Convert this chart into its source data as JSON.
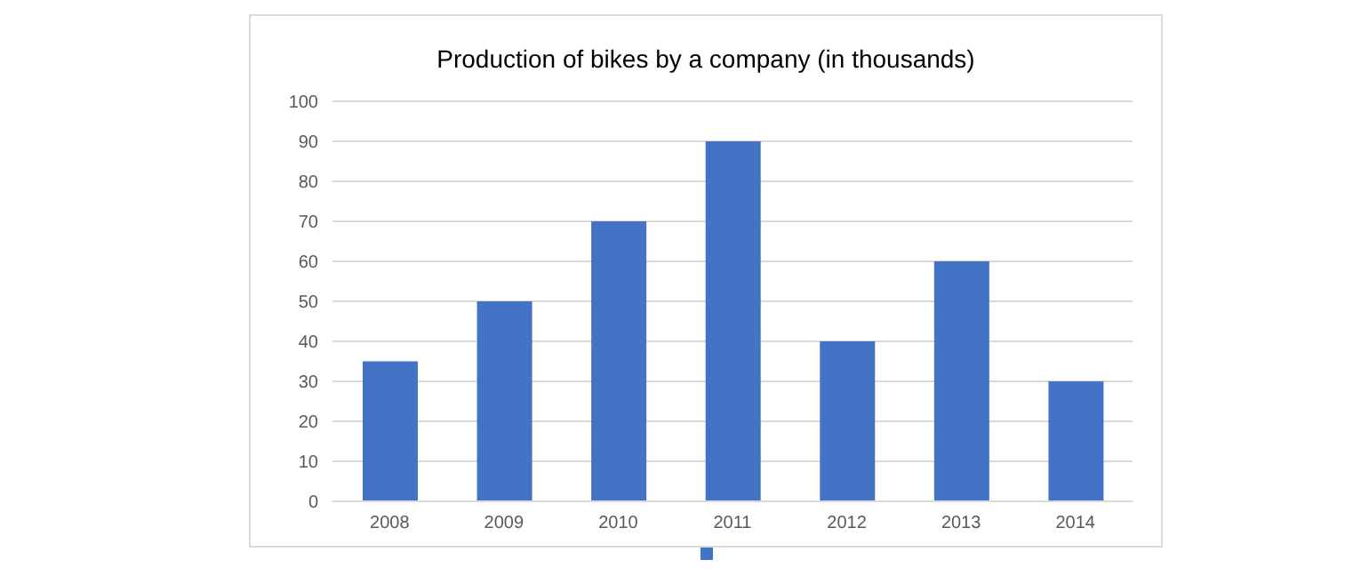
{
  "chart_data": {
    "type": "bar",
    "title": "Production of bikes by a company (in thousands)",
    "categories": [
      "2008",
      "2009",
      "2010",
      "2011",
      "2012",
      "2013",
      "2014"
    ],
    "values": [
      35,
      50,
      70,
      90,
      40,
      60,
      30
    ],
    "color": "#4472c4",
    "ylim": [
      0,
      100
    ],
    "yticks": [
      0,
      10,
      20,
      30,
      40,
      50,
      60,
      70,
      80,
      90,
      100
    ],
    "grid": "y"
  }
}
